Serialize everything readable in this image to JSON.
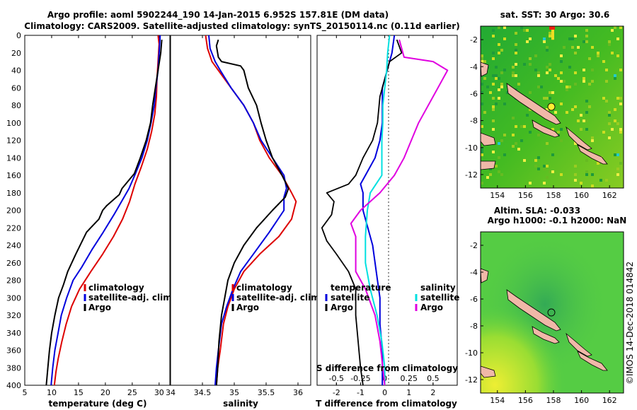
{
  "title_line1": "Argo profile: aoml 5902244_190 14-Jan-2015 6.952S 157.81E (DM data)",
  "title_line2": "Climatology: CARS2009. Satellite-adjusted climatology: synTS_20150114.nc (0.11d earlier)",
  "watermark": "©IMOS 14-Dec-2018 014842",
  "colors": {
    "climatology": "#dd0000",
    "satellite": "#0000dd",
    "argo": "#000000",
    "s_satellite": "#00e0e0",
    "s_argo": "#e000e0"
  },
  "depth_ticks": [
    "0",
    "20",
    "40",
    "60",
    "80",
    "100",
    "120",
    "140",
    "160",
    "180",
    "200",
    "220",
    "240",
    "260",
    "280",
    "300",
    "320",
    "340",
    "360",
    "380",
    "400"
  ],
  "chart_data": [
    {
      "type": "line",
      "id": "temperature",
      "xlabel": "temperature (deg C)",
      "ylabel": "depth",
      "xlim": [
        5,
        32
      ],
      "ylim": [
        400,
        0
      ],
      "x_ticks": [
        5,
        10,
        15,
        20,
        25,
        30
      ],
      "x_tick_labels": [
        "5",
        "10",
        "15",
        "20",
        "25",
        "30"
      ],
      "legend": [
        "climatology",
        "satellite-adj. clim.",
        "Argo"
      ],
      "series": [
        {
          "name": "climatology",
          "color": "#dd0000",
          "points": [
            [
              29.8,
              0
            ],
            [
              30,
              10
            ],
            [
              29.8,
              30
            ],
            [
              29.6,
              50
            ],
            [
              29.5,
              70
            ],
            [
              29.2,
              90
            ],
            [
              28.6,
              110
            ],
            [
              27.8,
              130
            ],
            [
              26.7,
              150
            ],
            [
              25.5,
              170
            ],
            [
              24.5,
              190
            ],
            [
              23.2,
              210
            ],
            [
              21.5,
              230
            ],
            [
              19.5,
              250
            ],
            [
              17.3,
              270
            ],
            [
              15.2,
              290
            ],
            [
              13.7,
              310
            ],
            [
              12.7,
              330
            ],
            [
              11.9,
              350
            ],
            [
              11.2,
              370
            ],
            [
              10.8,
              385
            ],
            [
              10.5,
              400
            ]
          ]
        },
        {
          "name": "satellite-adj. clim.",
          "color": "#0000dd",
          "points": [
            [
              30.2,
              0
            ],
            [
              30.1,
              10
            ],
            [
              29.8,
              40
            ],
            [
              29.4,
              60
            ],
            [
              29.1,
              80
            ],
            [
              28.5,
              100
            ],
            [
              27.8,
              120
            ],
            [
              26.8,
              140
            ],
            [
              25.6,
              158
            ],
            [
              24.4,
              175
            ],
            [
              23.0,
              190
            ],
            [
              21.6,
              205
            ],
            [
              19.6,
              225
            ],
            [
              17.5,
              245
            ],
            [
              15.6,
              265
            ],
            [
              14.0,
              280
            ],
            [
              12.8,
              300
            ],
            [
              11.8,
              320
            ],
            [
              11.2,
              340
            ],
            [
              10.6,
              360
            ],
            [
              10.2,
              380
            ],
            [
              9.9,
              400
            ]
          ]
        },
        {
          "name": "Argo",
          "color": "#000000",
          "points": [
            [
              30.5,
              5
            ],
            [
              30.3,
              20
            ],
            [
              29.8,
              40
            ],
            [
              29.3,
              60
            ],
            [
              28.8,
              80
            ],
            [
              28.4,
              100
            ],
            [
              27.6,
              120
            ],
            [
              26.5,
              140
            ],
            [
              25.4,
              158
            ],
            [
              23.1,
              175
            ],
            [
              22.6,
              182
            ],
            [
              20.2,
              195
            ],
            [
              19.5,
              200
            ],
            [
              18.8,
              210
            ],
            [
              16.5,
              225
            ],
            [
              14.5,
              250
            ],
            [
              13.0,
              270
            ],
            [
              12.2,
              285
            ],
            [
              11.3,
              300
            ],
            [
              10.6,
              320
            ],
            [
              10.0,
              340
            ],
            [
              9.6,
              360
            ],
            [
              9.3,
              380
            ],
            [
              9.0,
              400
            ]
          ]
        }
      ]
    },
    {
      "type": "line",
      "id": "salinity",
      "xlabel": "salinity",
      "ylabel": "depth",
      "xlim": [
        34,
        36.2
      ],
      "ylim": [
        400,
        0
      ],
      "x_ticks": [
        34,
        34.5,
        35,
        35.5,
        36
      ],
      "x_tick_labels": [
        "34",
        "34.5",
        "35",
        "35.5",
        "36"
      ],
      "legend": [
        "climatology",
        "satellite-adj. clim.",
        "Argo"
      ],
      "series": [
        {
          "name": "climatology",
          "color": "#dd0000",
          "points": [
            [
              34.55,
              0
            ],
            [
              34.58,
              15
            ],
            [
              34.65,
              30
            ],
            [
              34.75,
              40
            ],
            [
              34.95,
              60
            ],
            [
              35.15,
              80
            ],
            [
              35.3,
              100
            ],
            [
              35.4,
              120
            ],
            [
              35.55,
              140
            ],
            [
              35.75,
              160
            ],
            [
              35.9,
              180
            ],
            [
              35.97,
              190
            ],
            [
              35.9,
              210
            ],
            [
              35.7,
              230
            ],
            [
              35.4,
              250
            ],
            [
              35.15,
              270
            ],
            [
              35.0,
              290
            ],
            [
              34.9,
              310
            ],
            [
              34.83,
              330
            ],
            [
              34.78,
              360
            ],
            [
              34.74,
              380
            ],
            [
              34.72,
              400
            ]
          ]
        },
        {
          "name": "satellite-adj. clim.",
          "color": "#0000dd",
          "points": [
            [
              34.6,
              0
            ],
            [
              34.62,
              15
            ],
            [
              34.7,
              30
            ],
            [
              34.78,
              40
            ],
            [
              34.95,
              60
            ],
            [
              35.15,
              80
            ],
            [
              35.3,
              100
            ],
            [
              35.42,
              120
            ],
            [
              35.6,
              140
            ],
            [
              35.78,
              160
            ],
            [
              35.82,
              175
            ],
            [
              35.78,
              185
            ],
            [
              35.78,
              200
            ],
            [
              35.55,
              225
            ],
            [
              35.3,
              250
            ],
            [
              35.1,
              270
            ],
            [
              34.98,
              290
            ],
            [
              34.88,
              310
            ],
            [
              34.8,
              330
            ],
            [
              34.75,
              360
            ],
            [
              34.72,
              380
            ],
            [
              34.7,
              400
            ]
          ]
        },
        {
          "name": "Argo",
          "color": "#000000",
          "points": [
            [
              34.75,
              5
            ],
            [
              34.72,
              12
            ],
            [
              34.75,
              25
            ],
            [
              34.8,
              30
            ],
            [
              35.1,
              35
            ],
            [
              35.15,
              40
            ],
            [
              35.22,
              60
            ],
            [
              35.35,
              80
            ],
            [
              35.42,
              100
            ],
            [
              35.5,
              120
            ],
            [
              35.6,
              140
            ],
            [
              35.75,
              160
            ],
            [
              35.85,
              175
            ],
            [
              35.8,
              185
            ],
            [
              35.6,
              200
            ],
            [
              35.35,
              220
            ],
            [
              35.15,
              240
            ],
            [
              35.0,
              260
            ],
            [
              34.9,
              280
            ],
            [
              34.85,
              300
            ],
            [
              34.8,
              320
            ],
            [
              34.76,
              350
            ],
            [
              34.74,
              380
            ],
            [
              34.72,
              400
            ]
          ]
        }
      ]
    },
    {
      "type": "line",
      "id": "differences",
      "xlabel": "T difference from climatology",
      "x2label": "S difference from climatology",
      "ylabel": "depth",
      "xlim": [
        -2.8,
        3
      ],
      "x2lim": [
        -0.7,
        0.75
      ],
      "ylim": [
        400,
        0
      ],
      "x_ticks": [
        -2,
        -1,
        0,
        1,
        2
      ],
      "x_tick_labels": [
        "-2",
        "-1",
        "0",
        "1",
        "2"
      ],
      "x2_ticks": [
        -0.5,
        -0.25,
        0,
        0.25,
        0.5
      ],
      "x2_tick_labels": [
        "-0.5",
        "-0.25",
        "0",
        "0.25",
        "0.5"
      ],
      "legend_temperature_title": "temperature",
      "legend_salinity_title": "salinity",
      "legend": [
        "satellite",
        "Argo",
        "satellite",
        "Argo"
      ],
      "series": [
        {
          "name": "T satellite",
          "color": "#0000dd",
          "axis": "T",
          "points": [
            [
              0.4,
              0
            ],
            [
              0.3,
              20
            ],
            [
              0.1,
              40
            ],
            [
              -0.1,
              60
            ],
            [
              -0.1,
              80
            ],
            [
              -0.1,
              100
            ],
            [
              -0.2,
              120
            ],
            [
              -0.4,
              140
            ],
            [
              -0.8,
              160
            ],
            [
              -1.0,
              170
            ],
            [
              -0.9,
              180
            ],
            [
              -0.9,
              200
            ],
            [
              -0.7,
              220
            ],
            [
              -0.5,
              240
            ],
            [
              -0.4,
              260
            ],
            [
              -0.3,
              280
            ],
            [
              -0.2,
              300
            ],
            [
              -0.2,
              330
            ],
            [
              -0.1,
              360
            ],
            [
              -0.1,
              400
            ]
          ]
        },
        {
          "name": "T Argo",
          "color": "#000000",
          "axis": "T",
          "points": [
            [
              0.5,
              5
            ],
            [
              0.7,
              20
            ],
            [
              0.2,
              30
            ],
            [
              0.1,
              40
            ],
            [
              -0.2,
              70
            ],
            [
              -0.3,
              100
            ],
            [
              -0.5,
              120
            ],
            [
              -0.9,
              140
            ],
            [
              -1.2,
              160
            ],
            [
              -1.5,
              170
            ],
            [
              -2.4,
              180
            ],
            [
              -2.1,
              190
            ],
            [
              -2.2,
              205
            ],
            [
              -2.6,
              220
            ],
            [
              -2.4,
              235
            ],
            [
              -2.0,
              250
            ],
            [
              -1.5,
              270
            ],
            [
              -1.2,
              290
            ],
            [
              -1.2,
              320
            ],
            [
              -1.1,
              350
            ],
            [
              -1.0,
              380
            ],
            [
              -0.9,
              400
            ]
          ]
        },
        {
          "name": "S satellite",
          "color": "#00e0e0",
          "axis": "S",
          "points": [
            [
              0.05,
              0
            ],
            [
              0.03,
              20
            ],
            [
              0.02,
              40
            ],
            [
              0.0,
              60
            ],
            [
              -0.02,
              80
            ],
            [
              -0.02,
              100
            ],
            [
              -0.03,
              120
            ],
            [
              -0.03,
              140
            ],
            [
              -0.03,
              160
            ],
            [
              -0.15,
              180
            ],
            [
              -0.18,
              200
            ],
            [
              -0.2,
              230
            ],
            [
              -0.2,
              260
            ],
            [
              -0.15,
              290
            ],
            [
              -0.08,
              320
            ],
            [
              -0.03,
              350
            ],
            [
              0.0,
              380
            ],
            [
              0.0,
              400
            ]
          ]
        },
        {
          "name": "S Argo",
          "color": "#e000e0",
          "axis": "S",
          "points": [
            [
              0.15,
              5
            ],
            [
              0.2,
              25
            ],
            [
              0.5,
              30
            ],
            [
              0.65,
              40
            ],
            [
              0.55,
              60
            ],
            [
              0.35,
              100
            ],
            [
              0.2,
              140
            ],
            [
              0.1,
              160
            ],
            [
              -0.05,
              180
            ],
            [
              -0.25,
              200
            ],
            [
              -0.35,
              215
            ],
            [
              -0.3,
              230
            ],
            [
              -0.3,
              250
            ],
            [
              -0.3,
              270
            ],
            [
              -0.2,
              290
            ],
            [
              -0.1,
              320
            ],
            [
              -0.05,
              350
            ],
            [
              -0.02,
              380
            ],
            [
              0.0,
              400
            ]
          ]
        }
      ]
    },
    {
      "type": "heatmap",
      "id": "sst_map",
      "title": "sat. SST: 30 Argo: 30.6",
      "xlim": [
        152.8,
        163
      ],
      "ylim": [
        -13,
        -1
      ],
      "x_ticks": [
        154,
        156,
        158,
        160,
        162
      ],
      "x_tick_labels": [
        "154",
        "156",
        "158",
        "160",
        "162"
      ],
      "y_ticks": [
        -2,
        -4,
        -6,
        -8,
        -10,
        -12
      ],
      "y_tick_labels": [
        "-2",
        "-4",
        "-6",
        "-8",
        "-10",
        "-12"
      ],
      "argo_position": [
        157.81,
        -6.95
      ]
    },
    {
      "type": "heatmap",
      "id": "sla_map",
      "title_line1": "Altim. SLA: -0.033",
      "title_line2": "Argo h1000: -0.1 h2000: NaN",
      "xlim": [
        152.8,
        163
      ],
      "ylim": [
        -13,
        -1
      ],
      "x_ticks": [
        154,
        156,
        158,
        160,
        162
      ],
      "x_tick_labels": [
        "154",
        "156",
        "158",
        "160",
        "162"
      ],
      "y_ticks": [
        -2,
        -4,
        -6,
        -8,
        -10,
        -12
      ],
      "y_tick_labels": [
        "-2",
        "-4",
        "-6",
        "-8",
        "-10",
        "-12"
      ],
      "argo_position": [
        157.81,
        -6.95
      ]
    }
  ]
}
